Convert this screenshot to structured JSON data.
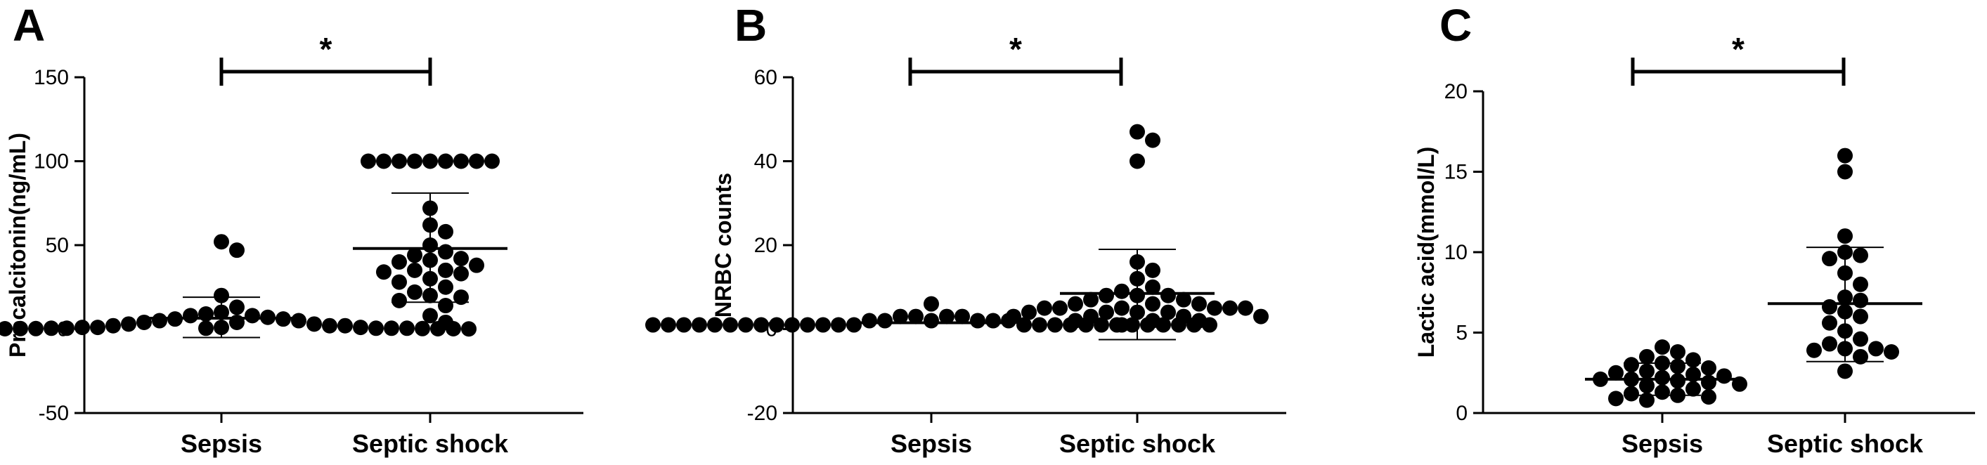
{
  "chart_data": [
    {
      "type": "scatter",
      "panel": "A",
      "ylabel": "Procalcitonin(ng/mL)",
      "ylim": [
        -50,
        150
      ],
      "yticks": [
        -50,
        0,
        50,
        100,
        150
      ],
      "categories": [
        "Sepsis",
        "Septic shock"
      ],
      "significance": "*",
      "groups": [
        {
          "name": "Sepsis",
          "mean": 6.5,
          "sd_upper": 19,
          "sd_lower": -5,
          "points": [
            52,
            47,
            20,
            13,
            10,
            9,
            8,
            8,
            7,
            6,
            6,
            5,
            5,
            4,
            4,
            3,
            3,
            2,
            2,
            2,
            1,
            1,
            1,
            1,
            0.5,
            0.5,
            0.5,
            0.5,
            0.5,
            0.5,
            0.3,
            0.3,
            0.3,
            0.2,
            0.2,
            0.2,
            0.1,
            0.1
          ]
        },
        {
          "name": "Septic shock",
          "mean": 48,
          "sd_upper": 81,
          "sd_lower": 16,
          "points": [
            100,
            100,
            100,
            100,
            100,
            100,
            100,
            100,
            100,
            72,
            62,
            58,
            50,
            46,
            44,
            42,
            41,
            40,
            38,
            35,
            35,
            34,
            33,
            30,
            28,
            25,
            22,
            20,
            19,
            17,
            14,
            8,
            4
          ]
        }
      ]
    },
    {
      "type": "scatter",
      "panel": "B",
      "ylabel": "NRBC counts",
      "ylim": [
        -20,
        60
      ],
      "yticks": [
        -20,
        0,
        20,
        40,
        60
      ],
      "categories": [
        "Sepsis",
        "Septic shock"
      ],
      "significance": "*",
      "groups": [
        {
          "name": "Sepsis",
          "mean": 1.5,
          "sd_upper": 1.5,
          "sd_lower": 1.5,
          "points": [
            6,
            3,
            3,
            3,
            3,
            2,
            2,
            2,
            2,
            2,
            2,
            1,
            1,
            1,
            1,
            1,
            1,
            1,
            1,
            1,
            1,
            1,
            1,
            1,
            1,
            1,
            1,
            1,
            1,
            1,
            1,
            1,
            1,
            1,
            1,
            1,
            1,
            1
          ]
        },
        {
          "name": "Septic shock",
          "mean": 8.5,
          "sd_upper": 19,
          "sd_lower": -2.5,
          "points": [
            47,
            45,
            40,
            16,
            14,
            12,
            10,
            9,
            8,
            8,
            8,
            7,
            7,
            6,
            6,
            6,
            5,
            5,
            5,
            5,
            5,
            5,
            4,
            4,
            4,
            4,
            3,
            3,
            3,
            3,
            2,
            2,
            2,
            1
          ]
        }
      ]
    },
    {
      "type": "scatter",
      "panel": "C",
      "ylabel": "Lactic acid(mmol/L)",
      "ylim": [
        0,
        20
      ],
      "yticks": [
        0,
        5,
        10,
        15,
        20
      ],
      "categories": [
        "Sepsis",
        "Septic shock"
      ],
      "significance": "*",
      "groups": [
        {
          "name": "Sepsis",
          "mean": 2.1,
          "sd_upper": 3.1,
          "sd_lower": 1.1,
          "points": [
            4.1,
            3.8,
            3.5,
            3.3,
            3.1,
            3.0,
            2.9,
            2.8,
            2.6,
            2.5,
            2.4,
            2.3,
            2.2,
            2.1,
            2.1,
            2.0,
            1.9,
            1.8,
            1.7,
            1.5,
            1.3,
            1.2,
            1.1,
            1.0,
            0.9,
            0.8
          ]
        },
        {
          "name": "Septic shock",
          "mean": 6.8,
          "sd_upper": 10.3,
          "sd_lower": 3.2,
          "points": [
            16,
            15,
            11,
            10,
            9.8,
            9.6,
            8.7,
            8.0,
            7.2,
            7.0,
            6.6,
            6.3,
            6.0,
            5.6,
            5.1,
            4.6,
            4.3,
            4.0,
            4.0,
            3.9,
            3.8,
            3.5,
            2.6
          ]
        }
      ]
    }
  ]
}
